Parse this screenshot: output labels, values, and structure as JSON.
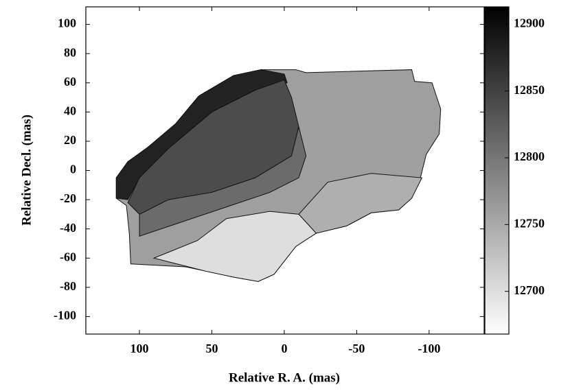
{
  "chart_data": {
    "type": "image",
    "xlabel": "Relative R. A. (mas)",
    "ylabel": "Relative Decl. (mas)",
    "xlim": [
      137,
      -138
    ],
    "xticks": [
      100,
      50,
      0,
      -50,
      -100
    ],
    "ylim": [
      -112,
      112
    ],
    "yticks": [
      -100,
      -80,
      -60,
      -40,
      -20,
      0,
      20,
      40,
      60,
      80,
      100
    ],
    "colorbar": {
      "clim": [
        12668,
        12913
      ],
      "ticks": [
        12700,
        12750,
        12800,
        12850,
        12900
      ]
    },
    "regions": [
      {
        "level": 12760,
        "points": [
          [
            116,
            -5
          ],
          [
            108,
            6
          ],
          [
            94,
            16
          ],
          [
            75,
            32
          ],
          [
            59,
            51
          ],
          [
            35,
            65
          ],
          [
            16,
            69
          ],
          [
            -8,
            69
          ],
          [
            -15,
            67
          ],
          [
            -88,
            69
          ],
          [
            -90,
            61
          ],
          [
            -102,
            60
          ],
          [
            -108,
            42
          ],
          [
            -107,
            25
          ],
          [
            -98,
            11
          ],
          [
            -94,
            -5
          ],
          [
            -88,
            -19
          ],
          [
            -79,
            -27
          ],
          [
            -60,
            -29
          ],
          [
            -43,
            -38
          ],
          [
            -22,
            -43
          ],
          [
            -8,
            -52
          ],
          [
            7,
            -71
          ],
          [
            18,
            -76
          ],
          [
            35,
            -73
          ],
          [
            54,
            -69
          ],
          [
            68,
            -66
          ],
          [
            87,
            -65
          ],
          [
            106,
            -64
          ],
          [
            107,
            -43
          ],
          [
            109,
            -24
          ],
          [
            116,
            -19
          ]
        ]
      },
      {
        "level": 12745,
        "points": [
          [
            -10,
            -30
          ],
          [
            -30,
            -8
          ],
          [
            -60,
            -2
          ],
          [
            -95,
            -5
          ],
          [
            -88,
            -19
          ],
          [
            -79,
            -27
          ],
          [
            -60,
            -29
          ],
          [
            -43,
            -38
          ],
          [
            -22,
            -43
          ]
        ]
      },
      {
        "level": 12700,
        "points": [
          [
            90,
            -60
          ],
          [
            60,
            -48
          ],
          [
            40,
            -33
          ],
          [
            10,
            -28
          ],
          [
            -10,
            -30
          ],
          [
            -22,
            -43
          ],
          [
            -8,
            -52
          ],
          [
            7,
            -71
          ],
          [
            18,
            -76
          ],
          [
            35,
            -73
          ],
          [
            54,
            -69
          ]
        ]
      },
      {
        "level": 12880,
        "points": [
          [
            116,
            -5
          ],
          [
            108,
            6
          ],
          [
            94,
            16
          ],
          [
            75,
            32
          ],
          [
            59,
            51
          ],
          [
            35,
            65
          ],
          [
            16,
            69
          ],
          [
            0,
            66
          ],
          [
            -2,
            60
          ],
          [
            20,
            55
          ],
          [
            50,
            40
          ],
          [
            80,
            15
          ],
          [
            100,
            -5
          ],
          [
            108,
            -20
          ],
          [
            116,
            -19
          ]
        ]
      },
      {
        "level": 12840,
        "points": [
          [
            0,
            62
          ],
          [
            -5,
            50
          ],
          [
            -10,
            30
          ],
          [
            -5,
            10
          ],
          [
            20,
            -5
          ],
          [
            50,
            -15
          ],
          [
            80,
            -20
          ],
          [
            100,
            -30
          ],
          [
            108,
            -22
          ],
          [
            100,
            -5
          ],
          [
            80,
            15
          ],
          [
            50,
            40
          ],
          [
            20,
            55
          ]
        ]
      },
      {
        "level": 12810,
        "points": [
          [
            -10,
            30
          ],
          [
            -15,
            10
          ],
          [
            -10,
            -5
          ],
          [
            10,
            -15
          ],
          [
            40,
            -25
          ],
          [
            70,
            -35
          ],
          [
            100,
            -45
          ],
          [
            100,
            -30
          ],
          [
            80,
            -20
          ],
          [
            50,
            -15
          ],
          [
            20,
            -5
          ],
          [
            -5,
            10
          ]
        ]
      }
    ]
  }
}
